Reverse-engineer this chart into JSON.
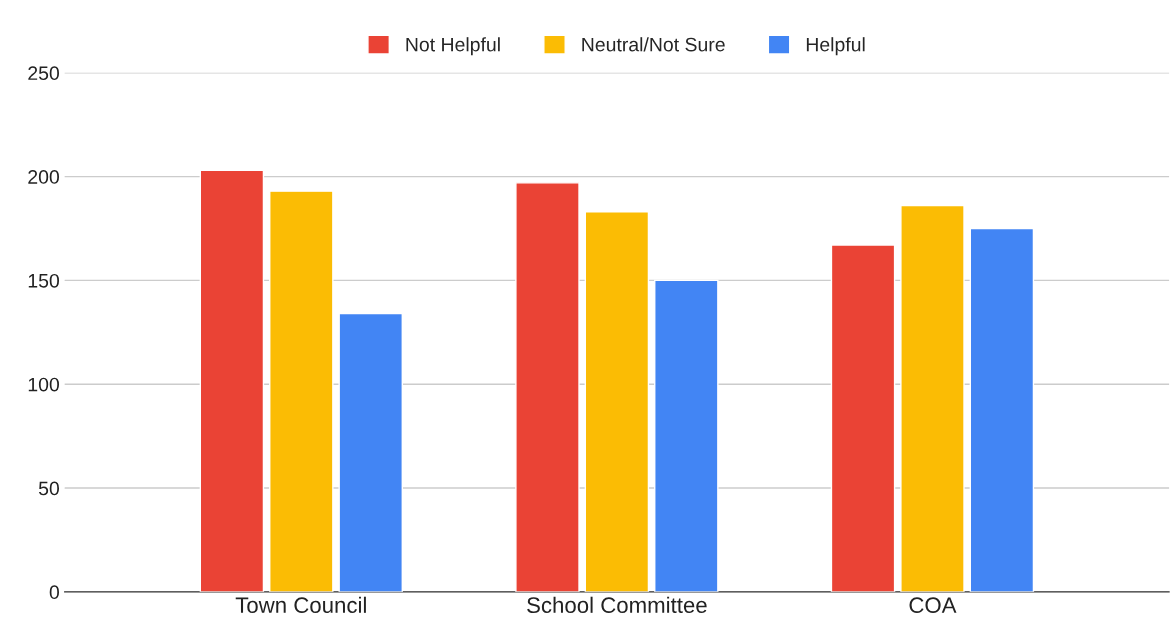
{
  "chart_data": {
    "type": "bar",
    "categories": [
      "Town Council",
      "School Committee",
      "COA"
    ],
    "series": [
      {
        "name": "Not Helpful",
        "color": "#ea4335",
        "values": [
          203,
          197,
          167
        ]
      },
      {
        "name": "Neutral/Not Sure",
        "color": "#fbbc04",
        "values": [
          193,
          183,
          186
        ]
      },
      {
        "name": "Helpful",
        "color": "#4285f4",
        "values": [
          134,
          150,
          175
        ]
      }
    ],
    "ylim": [
      0,
      250
    ],
    "yticks": [
      0,
      50,
      100,
      150,
      200,
      250
    ],
    "grid": "y",
    "legend": "top"
  }
}
